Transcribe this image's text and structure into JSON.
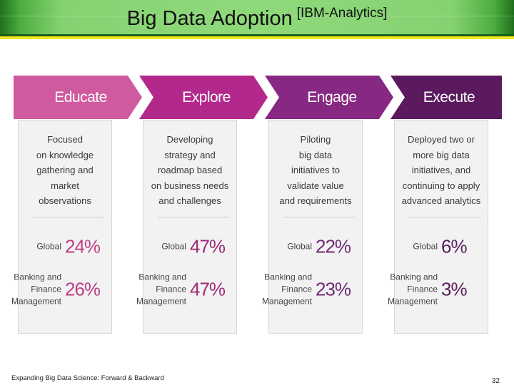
{
  "header": {
    "title": "Big Data Adoption",
    "subtitle": "[IBM-Analytics]"
  },
  "stages": [
    {
      "name": "Educate",
      "description": "Focused\non knowledge\ngathering and\nmarket\nobservations",
      "global_label": "Global",
      "global_value": "24%",
      "banking_label": "Banking and\nFinance\nManagement",
      "banking_value": "26%",
      "color": "#cf5aa0",
      "accent": "#bd3f88"
    },
    {
      "name": "Explore",
      "description": "Developing\nstrategy and\nroadmap based\non business needs\nand challenges",
      "global_label": "Global",
      "global_value": "47%",
      "banking_label": "Banking and\nFinance\nManagement",
      "banking_value": "47%",
      "color": "#b3288b",
      "accent": "#9e2b78"
    },
    {
      "name": "Engage",
      "description": "Piloting\nbig data\ninitiatives to\nvalidate value\nand requirements",
      "global_label": "Global",
      "global_value": "22%",
      "banking_label": "Banking and\nFinance\nManagement",
      "banking_value": "23%",
      "color": "#872982",
      "accent": "#722a77"
    },
    {
      "name": "Execute",
      "description": "Deployed two or\nmore big data\ninitiatives, and\ncontinuing to apply\nadvanced analytics",
      "global_label": "Global",
      "global_value": "6%",
      "banking_label": "Banking and\nFinance\nManagement",
      "banking_value": "3%",
      "color": "#5c1a5e",
      "accent": "#5a1f5c"
    }
  ],
  "footer": {
    "text": "Expanding Big Data Science: Forward & Backward",
    "page": "32"
  }
}
